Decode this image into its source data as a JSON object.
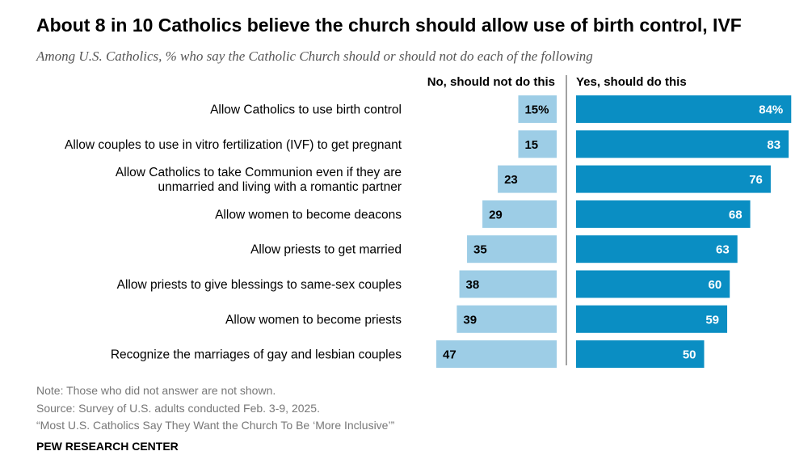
{
  "title": "About 8 in 10 Catholics believe the church should allow use of birth control, IVF",
  "subtitle": "Among U.S. Catholics, % who say the Catholic Church should or should not do each of the following",
  "chart_data": {
    "type": "bar",
    "orientation": "horizontal-diverging",
    "categories": [
      [
        "Allow Catholics to use birth control"
      ],
      [
        "Allow couples to use in vitro fertilization (IVF) to get pregnant"
      ],
      [
        "Allow Catholics to take Communion even if they are",
        "unmarried and living with a romantic partner"
      ],
      [
        "Allow women to become deacons"
      ],
      [
        "Allow priests to get married"
      ],
      [
        "Allow priests to give blessings to same-sex couples"
      ],
      [
        "Allow women to become priests"
      ],
      [
        "Recognize the marriages of gay and lesbian couples"
      ]
    ],
    "series": [
      {
        "name": "No, should not do this",
        "values": [
          15,
          15,
          23,
          29,
          35,
          38,
          39,
          47
        ],
        "labels": [
          "15%",
          "15",
          "23",
          "29",
          "35",
          "38",
          "39",
          "47"
        ],
        "color": "#9dcde6",
        "label_color": "#000000"
      },
      {
        "name": "Yes, should do this",
        "values": [
          84,
          83,
          76,
          68,
          63,
          60,
          59,
          50
        ],
        "labels": [
          "84%",
          "83",
          "76",
          "68",
          "63",
          "60",
          "59",
          "50"
        ],
        "color": "#0a8ec3",
        "label_color": "#ffffff"
      }
    ],
    "grid": false
  },
  "notes": [
    "Note: Those who did not answer are not shown.",
    "Source: Survey of U.S. adults conducted Feb. 3-9, 2025.",
    "“Most U.S. Catholics Say They Want the Church To Be ‘More Inclusive’”"
  ],
  "brand": "PEW RESEARCH CENTER"
}
